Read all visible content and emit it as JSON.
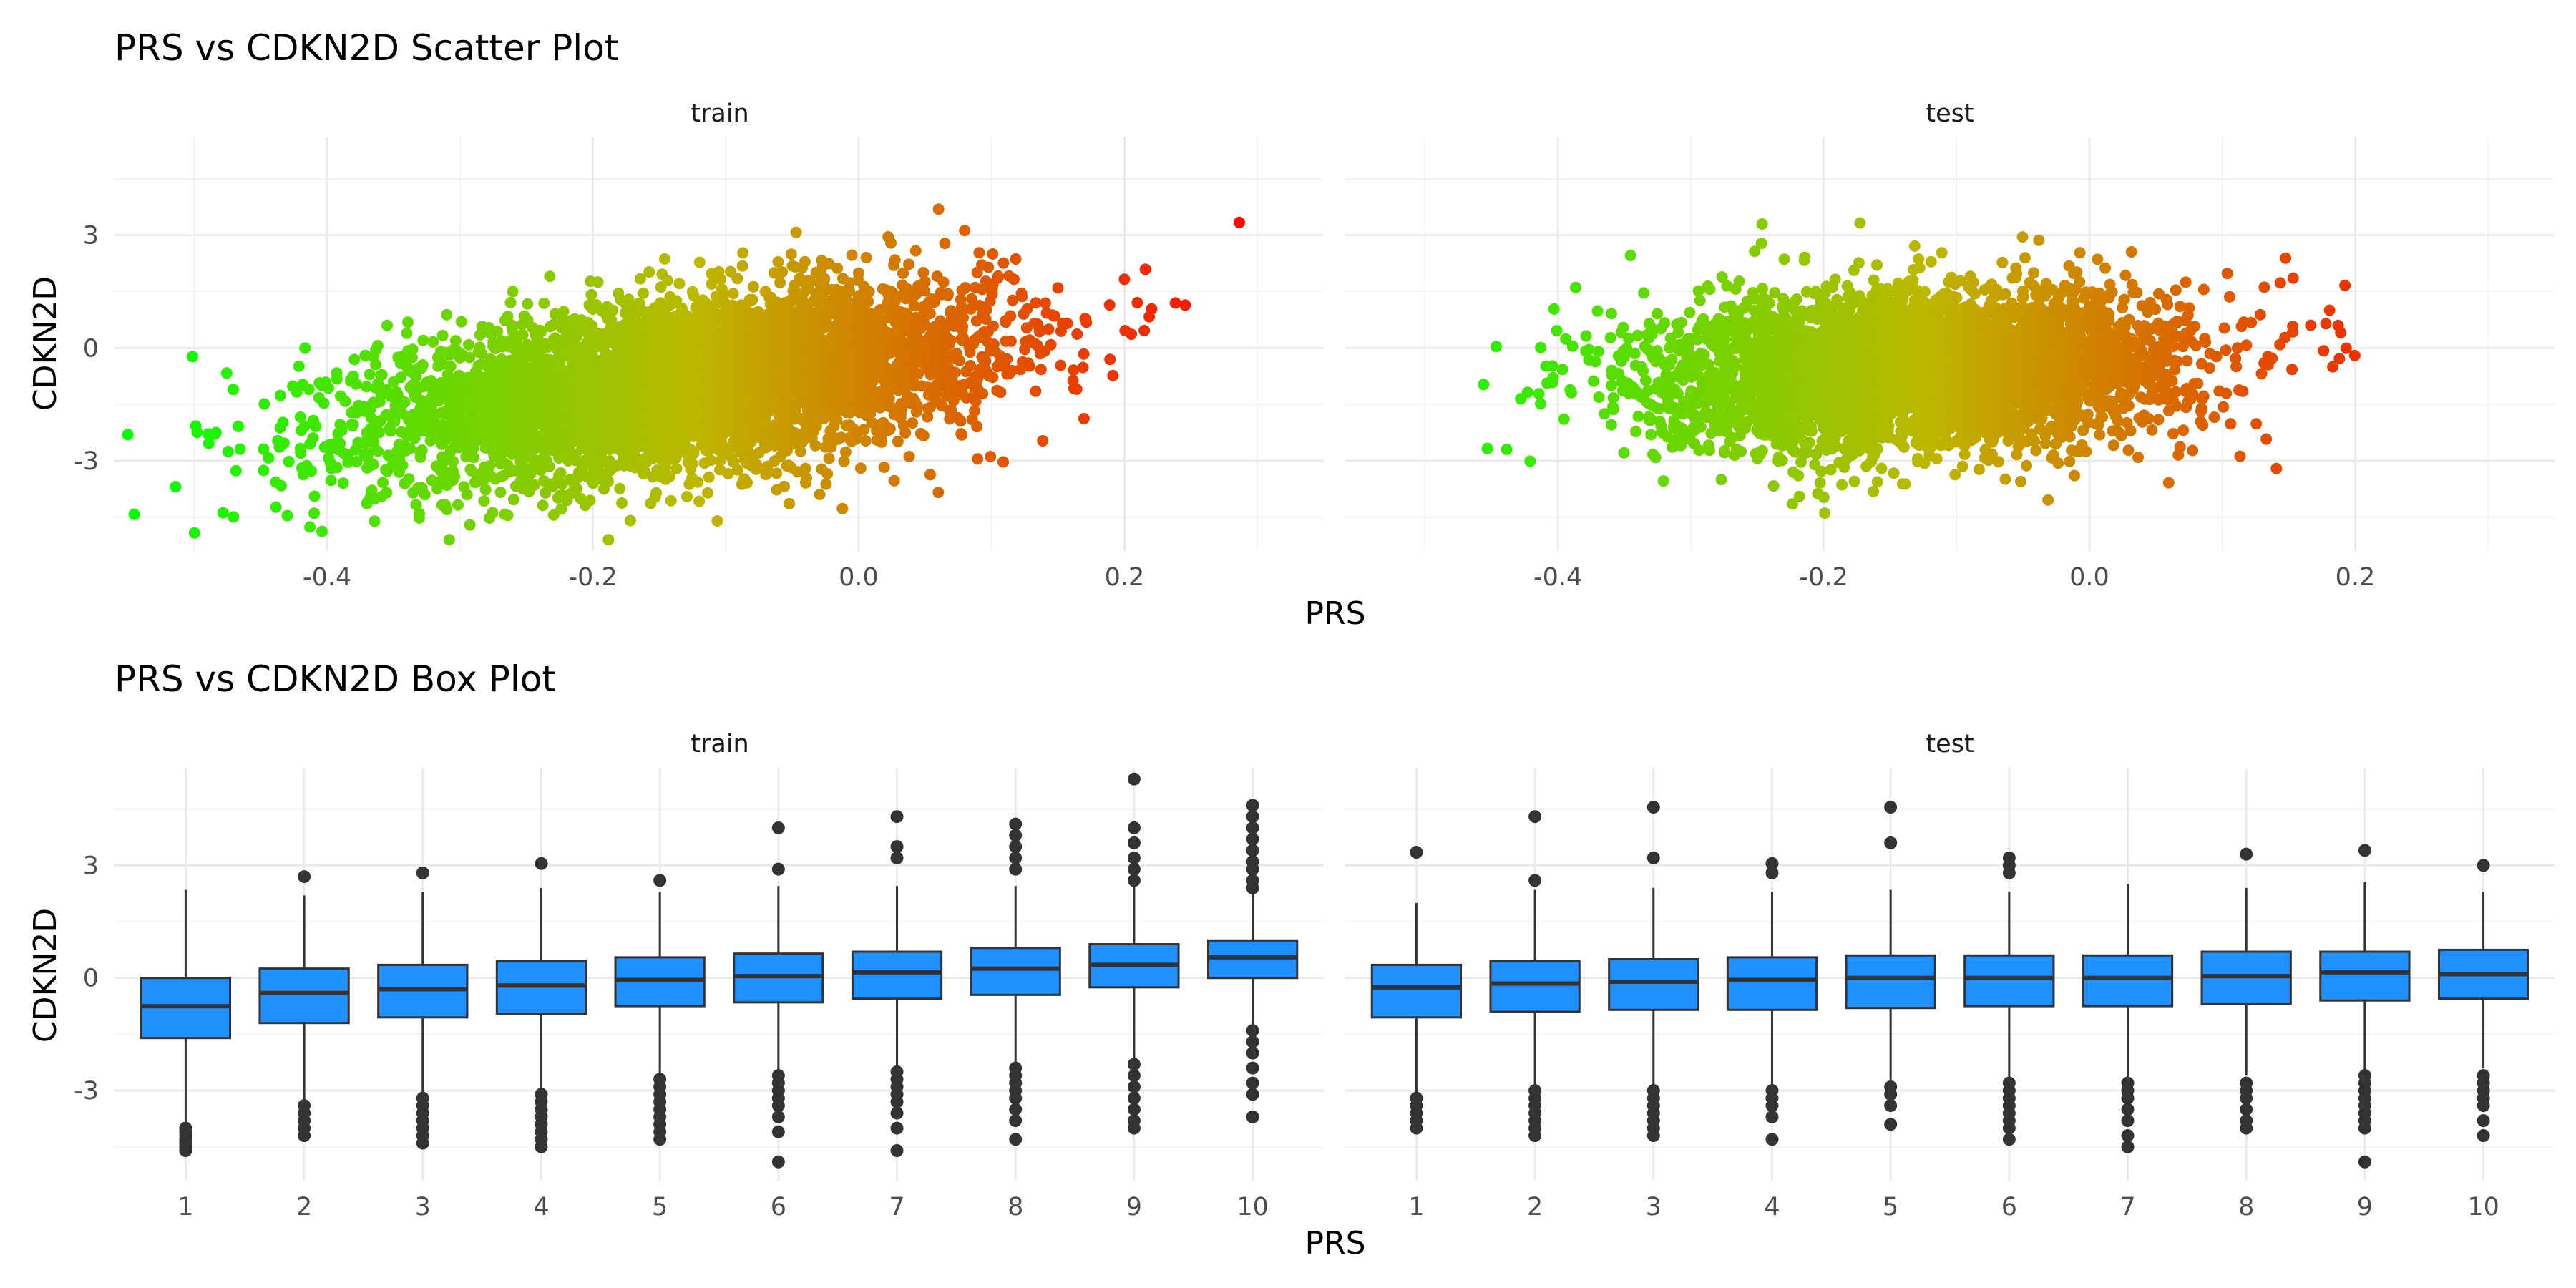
{
  "chart_data": [
    {
      "type": "scatter",
      "title": "PRS vs CDKN2D Scatter Plot",
      "xlabel": "PRS",
      "ylabel": "CDKN2D",
      "color_scale": {
        "low": "#00ff00",
        "mid": "#bdb700",
        "high": "#ff0000",
        "mapped_to": "PRS"
      },
      "panels": [
        {
          "name": "train",
          "xlim": [
            -0.56,
            0.35
          ],
          "ylim": [
            -5.4,
            5.6
          ],
          "xticks": [
            -0.4,
            -0.2,
            0.0,
            0.2
          ],
          "xtick_labels": [
            "-0.4",
            "-0.2",
            "0.0",
            "0.2"
          ],
          "yticks": [
            -3,
            0,
            3
          ],
          "ytick_labels": [
            "-3",
            "0",
            "3"
          ],
          "n_points": 5000,
          "trend": {
            "slope": 4.5,
            "intercept": -0.35,
            "sd": 1.1
          },
          "prs_center": -0.13,
          "prs_sd": 0.115,
          "prs_range": [
            -0.55,
            0.31
          ]
        },
        {
          "name": "test",
          "xlim": [
            -0.56,
            0.35
          ],
          "ylim": [
            -5.4,
            5.6
          ],
          "xticks": [
            -0.4,
            -0.2,
            0.0,
            0.2
          ],
          "xtick_labels": [
            "-0.4",
            "-0.2",
            "0.0",
            "0.2"
          ],
          "yticks": [
            -3,
            0,
            3
          ],
          "ytick_labels": [
            "-3",
            "0",
            "3"
          ],
          "n_points": 4000,
          "trend": {
            "slope": 1.4,
            "intercept": -0.4,
            "sd": 1.05
          },
          "prs_center": -0.13,
          "prs_sd": 0.1,
          "prs_range": [
            -0.52,
            0.23
          ]
        }
      ]
    },
    {
      "type": "box",
      "title": "PRS vs CDKN2D Box Plot",
      "xlabel": "PRS",
      "ylabel": "CDKN2D",
      "box_fill": "#1e90ff",
      "box_line": "#333333",
      "panels": [
        {
          "name": "train",
          "ylim": [
            -5.4,
            5.6
          ],
          "yticks": [
            -3,
            0,
            3
          ],
          "ytick_labels": [
            "-3",
            "0",
            "3"
          ],
          "categories": [
            "1",
            "2",
            "3",
            "4",
            "5",
            "6",
            "7",
            "8",
            "9",
            "10"
          ],
          "boxes": [
            {
              "lower": -4.0,
              "q1": -1.6,
              "median": -0.75,
              "q3": 0.0,
              "upper": 2.35,
              "outliers": [
                -4.0,
                -4.1,
                -4.2,
                -4.3,
                -4.4,
                -4.5,
                -4.6
              ]
            },
            {
              "lower": -3.3,
              "q1": -1.2,
              "median": -0.4,
              "q3": 0.25,
              "upper": 2.2,
              "outliers": [
                2.7,
                -3.4,
                -3.6,
                -3.8,
                -4.0,
                -4.2
              ]
            },
            {
              "lower": -3.2,
              "q1": -1.05,
              "median": -0.3,
              "q3": 0.35,
              "upper": 2.3,
              "outliers": [
                2.8,
                -3.2,
                -3.4,
                -3.6,
                -3.8,
                -4.0,
                -4.2,
                -4.4
              ]
            },
            {
              "lower": -3.0,
              "q1": -0.95,
              "median": -0.2,
              "q3": 0.45,
              "upper": 2.4,
              "outliers": [
                3.05,
                -3.1,
                -3.3,
                -3.5,
                -3.7,
                -3.9,
                -4.1,
                -4.3,
                -4.5
              ]
            },
            {
              "lower": -2.6,
              "q1": -0.75,
              "median": -0.05,
              "q3": 0.55,
              "upper": 2.3,
              "outliers": [
                2.6,
                -2.7,
                -2.9,
                -3.1,
                -3.3,
                -3.5,
                -3.7,
                -3.9,
                -4.1,
                -4.3
              ]
            },
            {
              "lower": -2.5,
              "q1": -0.65,
              "median": 0.05,
              "q3": 0.65,
              "upper": 2.45,
              "outliers": [
                2.9,
                4.0,
                -2.6,
                -2.8,
                -3.0,
                -3.2,
                -3.4,
                -3.7,
                -4.1,
                -4.9
              ]
            },
            {
              "lower": -2.4,
              "q1": -0.55,
              "median": 0.15,
              "q3": 0.7,
              "upper": 2.45,
              "outliers": [
                3.2,
                3.5,
                4.3,
                -2.5,
                -2.7,
                -2.9,
                -3.1,
                -3.3,
                -3.6,
                -4.0,
                -4.6
              ]
            },
            {
              "lower": -2.3,
              "q1": -0.45,
              "median": 0.25,
              "q3": 0.8,
              "upper": 2.45,
              "outliers": [
                2.9,
                3.2,
                3.5,
                3.8,
                4.1,
                -2.4,
                -2.6,
                -2.8,
                -3.0,
                -3.2,
                -3.5,
                -3.8,
                -4.3
              ]
            },
            {
              "lower": -2.2,
              "q1": -0.25,
              "median": 0.35,
              "q3": 0.9,
              "upper": 2.55,
              "outliers": [
                2.6,
                2.9,
                3.2,
                3.6,
                4.0,
                5.3,
                -2.3,
                -2.6,
                -2.9,
                -3.2,
                -3.5,
                -3.8,
                -4.0
              ]
            },
            {
              "lower": -1.3,
              "q1": 0.0,
              "median": 0.55,
              "q3": 1.0,
              "upper": 2.3,
              "outliers": [
                2.4,
                2.6,
                2.9,
                3.1,
                3.4,
                3.7,
                4.0,
                4.3,
                4.6,
                -1.4,
                -1.7,
                -2.0,
                -2.4,
                -2.8,
                -3.1,
                -3.7
              ]
            }
          ]
        },
        {
          "name": "test",
          "ylim": [
            -5.4,
            5.6
          ],
          "yticks": [
            -3,
            0,
            3
          ],
          "ytick_labels": [
            "-3",
            "0",
            "3"
          ],
          "categories": [
            "1",
            "2",
            "3",
            "4",
            "5",
            "6",
            "7",
            "8",
            "9",
            "10"
          ],
          "boxes": [
            {
              "lower": -3.1,
              "q1": -1.05,
              "median": -0.25,
              "q3": 0.35,
              "upper": 2.0,
              "outliers": [
                3.35,
                -3.2,
                -3.4,
                -3.6,
                -3.8,
                -4.0
              ]
            },
            {
              "lower": -3.1,
              "q1": -0.9,
              "median": -0.15,
              "q3": 0.45,
              "upper": 2.35,
              "outliers": [
                2.6,
                4.3,
                -3.0,
                -3.2,
                -3.4,
                -3.6,
                -3.8,
                -4.0,
                -4.2
              ]
            },
            {
              "lower": -3.0,
              "q1": -0.85,
              "median": -0.1,
              "q3": 0.5,
              "upper": 2.4,
              "outliers": [
                3.2,
                4.55,
                -3.0,
                -3.2,
                -3.4,
                -3.6,
                -3.8,
                -4.0,
                -4.2
              ]
            },
            {
              "lower": -2.9,
              "q1": -0.85,
              "median": -0.05,
              "q3": 0.55,
              "upper": 2.3,
              "outliers": [
                2.8,
                3.05,
                -3.0,
                -3.2,
                -3.4,
                -3.7,
                -4.3
              ]
            },
            {
              "lower": -2.8,
              "q1": -0.8,
              "median": 0.0,
              "q3": 0.6,
              "upper": 2.35,
              "outliers": [
                3.6,
                4.55,
                -2.9,
                -3.1,
                -3.4,
                -3.9
              ]
            },
            {
              "lower": -2.7,
              "q1": -0.75,
              "median": 0.0,
              "q3": 0.6,
              "upper": 2.3,
              "outliers": [
                2.8,
                3.0,
                3.2,
                -2.8,
                -3.0,
                -3.2,
                -3.4,
                -3.6,
                -3.8,
                -4.0,
                -4.3
              ]
            },
            {
              "lower": -2.7,
              "q1": -0.75,
              "median": 0.0,
              "q3": 0.6,
              "upper": 2.5,
              "outliers": [
                -2.8,
                -3.0,
                -3.2,
                -3.5,
                -3.8,
                -4.2,
                -4.5
              ]
            },
            {
              "lower": -2.6,
              "q1": -0.7,
              "median": 0.05,
              "q3": 0.7,
              "upper": 2.4,
              "outliers": [
                3.3,
                -2.8,
                -3.0,
                -3.2,
                -3.5,
                -3.8,
                -4.0
              ]
            },
            {
              "lower": -2.5,
              "q1": -0.6,
              "median": 0.15,
              "q3": 0.7,
              "upper": 2.55,
              "outliers": [
                3.4,
                -2.6,
                -2.8,
                -3.0,
                -3.2,
                -3.4,
                -3.6,
                -3.8,
                -4.0,
                -4.9
              ]
            },
            {
              "lower": -2.4,
              "q1": -0.55,
              "median": 0.1,
              "q3": 0.75,
              "upper": 2.3,
              "outliers": [
                3.0,
                -2.6,
                -2.8,
                -3.0,
                -3.2,
                -3.4,
                -3.8,
                -4.2
              ]
            }
          ]
        }
      ]
    }
  ]
}
